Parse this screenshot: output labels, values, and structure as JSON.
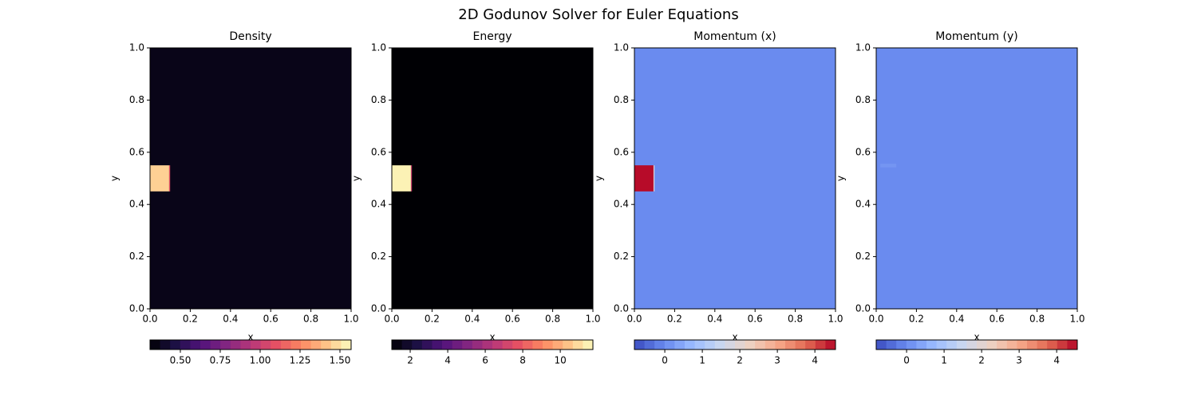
{
  "title": "2D Godunov Solver for Euler Equations",
  "chart_data": [
    {
      "type": "heatmap",
      "title": "Density",
      "xlabel": "x",
      "ylabel": "y",
      "colormap": "magma",
      "xlim": [
        0,
        1
      ],
      "ylim": [
        0,
        1
      ],
      "xticks": [
        {
          "value": 0,
          "label": "0.0"
        },
        0.2,
        0.4,
        0.6,
        0.8,
        {
          "value": 1,
          "label": "1.0"
        }
      ],
      "yticks": [
        {
          "value": 0,
          "label": "0.0"
        },
        0.2,
        0.4,
        0.6,
        0.8,
        {
          "value": 1,
          "label": "1.0"
        }
      ],
      "background": 0.36,
      "regions": [
        {
          "x": [
            0,
            0.095
          ],
          "y": [
            0.45,
            0.55
          ],
          "value": 1.45
        },
        {
          "x": [
            0.095,
            0.1
          ],
          "y": [
            0.45,
            0.55
          ],
          "value": 1.1
        }
      ],
      "clim": [
        0.31,
        1.57
      ],
      "cticks": [
        {
          "value": 0.5,
          "label": "0.50"
        },
        {
          "value": 0.75,
          "label": "0.75"
        },
        {
          "value": 1,
          "label": "1.00"
        },
        {
          "value": 1.25,
          "label": "1.25"
        },
        {
          "value": 1.5,
          "label": "1.50"
        }
      ]
    },
    {
      "type": "heatmap",
      "title": "Energy",
      "xlabel": "x",
      "ylabel": "y",
      "colormap": "magma",
      "xlim": [
        0,
        1
      ],
      "ylim": [
        0,
        1
      ],
      "xticks": [
        {
          "value": 0,
          "label": "0.0"
        },
        0.2,
        0.4,
        0.6,
        0.8,
        {
          "value": 1,
          "label": "1.0"
        }
      ],
      "yticks": [
        {
          "value": 0,
          "label": "0.0"
        },
        0.2,
        0.4,
        0.6,
        0.8,
        {
          "value": 1,
          "label": "1.0"
        }
      ],
      "background": 1.02,
      "regions": [
        {
          "x": [
            0,
            0.095
          ],
          "y": [
            0.45,
            0.55
          ],
          "value": 11.5
        },
        {
          "x": [
            0.095,
            0.1
          ],
          "y": [
            0.45,
            0.55
          ],
          "value": 7
        }
      ],
      "clim": [
        1.02,
        11.74
      ],
      "cticks": [
        2,
        4,
        6,
        8,
        10
      ]
    },
    {
      "type": "heatmap",
      "title": "Momentum (x)",
      "xlabel": "x",
      "ylabel": "y",
      "colormap": "coolwarm",
      "xlim": [
        0,
        1
      ],
      "ylim": [
        0,
        1
      ],
      "xticks": [
        {
          "value": 0,
          "label": "0.0"
        },
        0.2,
        0.4,
        0.6,
        0.8,
        {
          "value": 1,
          "label": "1.0"
        }
      ],
      "yticks": [
        {
          "value": 0,
          "label": "0.0"
        },
        0.2,
        0.4,
        0.6,
        0.8,
        {
          "value": 1,
          "label": "1.0"
        }
      ],
      "background": 0,
      "regions": [
        {
          "x": [
            0,
            0.095
          ],
          "y": [
            0.45,
            0.55
          ],
          "value": 4.5
        },
        {
          "x": [
            0.095,
            0.1
          ],
          "y": [
            0.45,
            0.55
          ],
          "value": 1.9
        }
      ],
      "clim": [
        -0.81,
        4.55
      ],
      "cticks": [
        0,
        1,
        2,
        3,
        4
      ]
    },
    {
      "type": "heatmap",
      "title": "Momentum (y)",
      "xlabel": "x",
      "ylabel": "y",
      "colormap": "coolwarm",
      "xlim": [
        0,
        1
      ],
      "ylim": [
        0,
        1
      ],
      "xticks": [
        {
          "value": 0,
          "label": "0.0"
        },
        0.2,
        0.4,
        0.6,
        0.8,
        {
          "value": 1,
          "label": "1.0"
        }
      ],
      "yticks": [
        {
          "value": 0,
          "label": "0.0"
        },
        0.2,
        0.4,
        0.6,
        0.8,
        {
          "value": 1,
          "label": "1.0"
        }
      ],
      "background": 0,
      "regions": [
        {
          "x": [
            0.02,
            0.1
          ],
          "y": [
            0.542,
            0.556
          ],
          "value": 0.15
        }
      ],
      "clim": [
        -0.81,
        4.55
      ],
      "cticks": [
        0,
        1,
        2,
        3,
        4
      ]
    }
  ]
}
